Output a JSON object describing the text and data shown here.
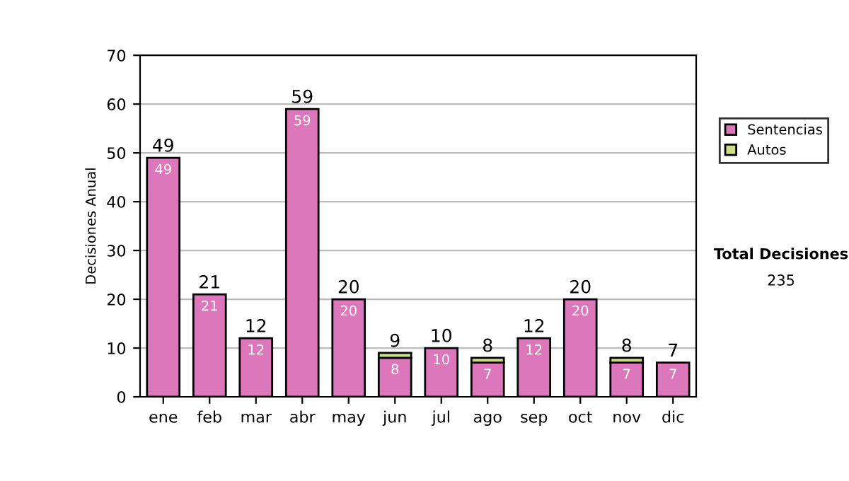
{
  "chart_data": {
    "type": "bar",
    "ylabel": "Decisiones Anual",
    "categories": [
      "ene",
      "feb",
      "mar",
      "abr",
      "may",
      "jun",
      "jul",
      "ago",
      "sep",
      "oct",
      "nov",
      "dic"
    ],
    "stacked": true,
    "series": [
      {
        "name": "Sentencias",
        "color": "#dd77bb",
        "values": [
          49,
          21,
          12,
          59,
          20,
          8,
          10,
          7,
          12,
          20,
          7,
          7
        ],
        "value_labels": [
          "49",
          "21",
          "12",
          "59",
          "20",
          "8",
          "10",
          "7",
          "12",
          "20",
          "7",
          "7"
        ]
      },
      {
        "name": "Autos",
        "color": "#ccdd88",
        "values": [
          null,
          null,
          null,
          null,
          null,
          1,
          null,
          1,
          null,
          null,
          1,
          null
        ]
      }
    ],
    "totals": [
      "49",
      "21",
      "12",
      "59",
      "20",
      "9",
      "10",
      "8",
      "12",
      "20",
      "8",
      "7"
    ],
    "ylim": [
      0,
      70
    ],
    "yticks": [
      0,
      10,
      20,
      30,
      40,
      50,
      60,
      70
    ],
    "grid": "y",
    "legend": "right",
    "annotations": [
      "Total Decisiones",
      "235"
    ]
  }
}
